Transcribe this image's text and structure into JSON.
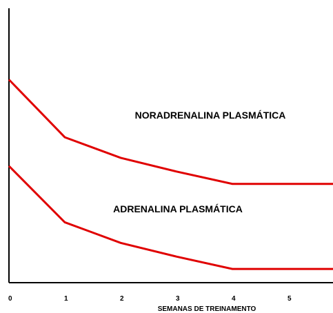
{
  "chart_data": {
    "type": "line",
    "title": "",
    "xlabel": "SEMANAS DE TREINAMENTO",
    "ylabel": "",
    "x_ticks": [
      "0",
      "1",
      "2",
      "3",
      "4",
      "5"
    ],
    "xlim": [
      0,
      6
    ],
    "ylim": [
      0,
      10
    ],
    "grid": false,
    "line_color": "#e00000",
    "series": [
      {
        "name": "NORADRENALINA PLASMÁTICA",
        "x": [
          0,
          1,
          2,
          3,
          4,
          5,
          6
        ],
        "y": [
          7.4,
          5.3,
          4.55,
          4.05,
          3.6,
          3.6,
          3.6
        ]
      },
      {
        "name": "ADRENALINA PLASMÁTICA",
        "x": [
          0,
          1,
          2,
          3,
          4,
          5,
          6
        ],
        "y": [
          4.25,
          2.2,
          1.45,
          0.95,
          0.5,
          0.5,
          0.5
        ]
      }
    ]
  }
}
